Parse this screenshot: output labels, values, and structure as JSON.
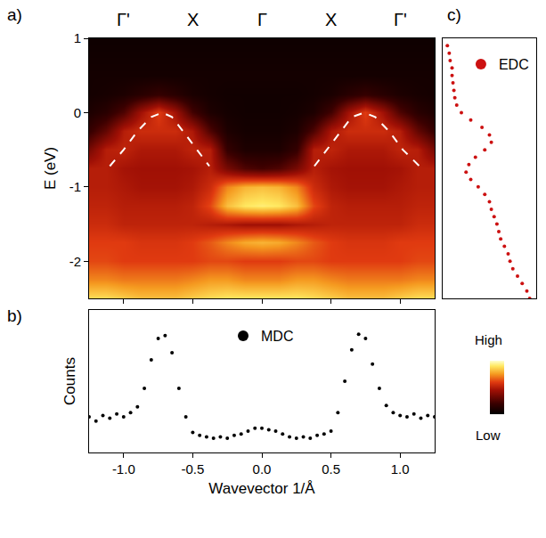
{
  "chart_data": [
    {
      "type": "heatmap",
      "label": "a)",
      "x": [
        -1.25,
        -1.125,
        -1.0,
        -0.875,
        -0.75,
        -0.625,
        -0.5,
        -0.375,
        -0.25,
        -0.125,
        0,
        0.125,
        0.25,
        0.375,
        0.5,
        0.625,
        0.75,
        0.875,
        1.0,
        1.125,
        1.25
      ],
      "y": [
        1.0,
        0.75,
        0.5,
        0.25,
        0,
        -0.25,
        -0.5,
        -0.75,
        -1.0,
        -1.25,
        -1.5,
        -1.75,
        -2.0,
        -2.25,
        -2.5
      ],
      "z": [
        [
          0.05,
          0.05,
          0.05,
          0.05,
          0.05,
          0.05,
          0.05,
          0.05,
          0.05,
          0.05,
          0.05,
          0.05,
          0.05,
          0.05,
          0.05,
          0.05,
          0.05,
          0.05,
          0.05,
          0.05,
          0.05
        ],
        [
          0.06,
          0.06,
          0.06,
          0.06,
          0.06,
          0.06,
          0.06,
          0.06,
          0.06,
          0.06,
          0.06,
          0.06,
          0.06,
          0.06,
          0.06,
          0.06,
          0.06,
          0.06,
          0.06,
          0.06,
          0.06
        ],
        [
          0.07,
          0.07,
          0.07,
          0.07,
          0.07,
          0.07,
          0.07,
          0.07,
          0.07,
          0.07,
          0.07,
          0.07,
          0.07,
          0.07,
          0.07,
          0.07,
          0.07,
          0.07,
          0.07,
          0.07,
          0.07
        ],
        [
          0.07,
          0.08,
          0.1,
          0.14,
          0.18,
          0.14,
          0.09,
          0.07,
          0.06,
          0.06,
          0.06,
          0.06,
          0.06,
          0.07,
          0.09,
          0.14,
          0.18,
          0.14,
          0.1,
          0.08,
          0.07
        ],
        [
          0.1,
          0.14,
          0.25,
          0.45,
          0.6,
          0.45,
          0.22,
          0.1,
          0.07,
          0.06,
          0.06,
          0.06,
          0.07,
          0.1,
          0.22,
          0.45,
          0.6,
          0.45,
          0.25,
          0.14,
          0.1
        ],
        [
          0.18,
          0.3,
          0.5,
          0.55,
          0.55,
          0.55,
          0.48,
          0.25,
          0.1,
          0.07,
          0.07,
          0.07,
          0.1,
          0.25,
          0.48,
          0.55,
          0.55,
          0.55,
          0.5,
          0.3,
          0.18
        ],
        [
          0.35,
          0.5,
          0.52,
          0.48,
          0.48,
          0.48,
          0.52,
          0.5,
          0.18,
          0.1,
          0.1,
          0.1,
          0.18,
          0.5,
          0.52,
          0.48,
          0.48,
          0.48,
          0.52,
          0.5,
          0.35
        ],
        [
          0.5,
          0.5,
          0.46,
          0.45,
          0.45,
          0.45,
          0.46,
          0.5,
          0.35,
          0.25,
          0.22,
          0.25,
          0.35,
          0.5,
          0.46,
          0.45,
          0.45,
          0.45,
          0.46,
          0.5,
          0.5
        ],
        [
          0.5,
          0.5,
          0.48,
          0.46,
          0.46,
          0.46,
          0.48,
          0.55,
          0.72,
          0.8,
          0.82,
          0.8,
          0.72,
          0.55,
          0.48,
          0.46,
          0.46,
          0.46,
          0.48,
          0.5,
          0.5
        ],
        [
          0.52,
          0.52,
          0.5,
          0.5,
          0.5,
          0.5,
          0.52,
          0.62,
          0.82,
          0.9,
          0.92,
          0.9,
          0.82,
          0.62,
          0.52,
          0.5,
          0.5,
          0.5,
          0.5,
          0.52,
          0.52
        ],
        [
          0.55,
          0.55,
          0.52,
          0.52,
          0.52,
          0.52,
          0.52,
          0.5,
          0.48,
          0.45,
          0.45,
          0.45,
          0.48,
          0.5,
          0.52,
          0.52,
          0.52,
          0.52,
          0.52,
          0.55,
          0.55
        ],
        [
          0.6,
          0.6,
          0.6,
          0.58,
          0.58,
          0.58,
          0.6,
          0.65,
          0.72,
          0.78,
          0.8,
          0.78,
          0.72,
          0.65,
          0.6,
          0.58,
          0.58,
          0.58,
          0.6,
          0.6,
          0.6
        ],
        [
          0.62,
          0.62,
          0.6,
          0.6,
          0.6,
          0.6,
          0.6,
          0.62,
          0.62,
          0.6,
          0.6,
          0.6,
          0.62,
          0.62,
          0.6,
          0.6,
          0.6,
          0.6,
          0.6,
          0.62,
          0.62
        ],
        [
          0.72,
          0.72,
          0.7,
          0.7,
          0.7,
          0.7,
          0.72,
          0.75,
          0.75,
          0.72,
          0.72,
          0.72,
          0.75,
          0.75,
          0.72,
          0.7,
          0.7,
          0.7,
          0.7,
          0.72,
          0.72
        ],
        [
          0.88,
          0.88,
          0.85,
          0.82,
          0.82,
          0.82,
          0.85,
          0.88,
          0.9,
          0.9,
          0.9,
          0.9,
          0.9,
          0.88,
          0.85,
          0.82,
          0.82,
          0.82,
          0.85,
          0.88,
          0.88
        ]
      ],
      "zlim": [
        0,
        1
      ],
      "colorbar_ticks": [
        {
          "value": 1,
          "label": "High"
        },
        {
          "value": 0,
          "label": "Low"
        }
      ],
      "ylabel": "E (eV)",
      "xlim": [
        -1.25,
        1.25
      ],
      "ylim": [
        -2.5,
        1.0
      ],
      "xticks": [
        -1.0,
        -0.5,
        0,
        0.5,
        1.0
      ],
      "yticks": [
        -2,
        -1,
        0,
        1
      ],
      "tick_labels": "y",
      "annotations": [
        {
          "text": "Γ'",
          "x": -1.0
        },
        {
          "text": "X",
          "x": -0.5
        },
        {
          "text": "Γ",
          "x": 0
        },
        {
          "text": "X",
          "x": 0.5
        },
        {
          "text": "Γ'",
          "x": 1.0
        }
      ],
      "series": [
        {
          "type": "line",
          "line_style": "dashed",
          "color": "#ffffff",
          "x": [
            -1.1,
            -1.0,
            -0.9,
            -0.8,
            -0.72,
            -0.65,
            -0.55,
            -0.45,
            -0.38,
            null,
            0.38,
            0.45,
            0.55,
            0.65,
            0.74,
            0.82,
            0.92,
            1.02,
            1.14
          ],
          "values": [
            -0.72,
            -0.5,
            -0.25,
            -0.06,
            0.0,
            -0.06,
            -0.3,
            -0.55,
            -0.72,
            null,
            -0.72,
            -0.55,
            -0.3,
            -0.06,
            0.0,
            -0.06,
            -0.25,
            -0.5,
            -0.72
          ]
        }
      ]
    },
    {
      "type": "scatter",
      "label": "b)",
      "xlabel": "Wavevector 1/Å",
      "ylabel": "Counts",
      "xlim": [
        -1.25,
        1.25
      ],
      "ylim": [
        0,
        1
      ],
      "xticks": [
        {
          "value": -1.0,
          "label": "-1.0"
        },
        {
          "value": -0.5,
          "label": "-0.5"
        },
        {
          "value": 0,
          "label": "0.0"
        },
        {
          "value": 0.5,
          "label": "0.5"
        },
        {
          "value": 1.0,
          "label": "1.0"
        }
      ],
      "tick_labels": "x",
      "legend": "top",
      "series": [
        {
          "name": "MDC",
          "marker": "circle",
          "color": "#000000",
          "x": [
            -1.25,
            -1.2,
            -1.15,
            -1.1,
            -1.05,
            -1.0,
            -0.95,
            -0.9,
            -0.85,
            -0.8,
            -0.75,
            -0.7,
            -0.65,
            -0.6,
            -0.55,
            -0.5,
            -0.45,
            -0.4,
            -0.35,
            -0.3,
            -0.25,
            -0.2,
            -0.15,
            -0.1,
            -0.05,
            0,
            0.05,
            0.1,
            0.15,
            0.2,
            0.25,
            0.3,
            0.35,
            0.4,
            0.45,
            0.5,
            0.55,
            0.6,
            0.65,
            0.7,
            0.75,
            0.8,
            0.85,
            0.9,
            0.95,
            1.0,
            1.05,
            1.1,
            1.15,
            1.2,
            1.25
          ],
          "values": [
            0.25,
            0.22,
            0.26,
            0.24,
            0.27,
            0.25,
            0.28,
            0.32,
            0.45,
            0.65,
            0.8,
            0.82,
            0.7,
            0.45,
            0.25,
            0.14,
            0.12,
            0.11,
            0.1,
            0.11,
            0.1,
            0.12,
            0.13,
            0.15,
            0.17,
            0.17,
            0.16,
            0.15,
            0.13,
            0.11,
            0.1,
            0.11,
            0.1,
            0.12,
            0.13,
            0.15,
            0.28,
            0.5,
            0.72,
            0.83,
            0.8,
            0.62,
            0.45,
            0.33,
            0.28,
            0.26,
            0.25,
            0.27,
            0.24,
            0.26,
            0.25
          ]
        }
      ]
    },
    {
      "type": "scatter",
      "label": "c)",
      "xlim": [
        0,
        1
      ],
      "ylim": [
        -2.5,
        1.0
      ],
      "tick_labels": false,
      "legend": "top right",
      "series": [
        {
          "name": "EDC",
          "marker": "circle",
          "color": "#cc1111",
          "x": [
            0.05,
            0.07,
            0.08,
            0.1,
            0.1,
            0.11,
            0.12,
            0.13,
            0.15,
            0.2,
            0.3,
            0.42,
            0.5,
            0.52,
            0.45,
            0.35,
            0.28,
            0.25,
            0.3,
            0.38,
            0.45,
            0.5,
            0.52,
            0.55,
            0.58,
            0.6,
            0.62,
            0.66,
            0.7,
            0.72,
            0.75,
            0.8,
            0.85,
            0.9,
            0.93
          ],
          "values": [
            0.9,
            0.8,
            0.7,
            0.6,
            0.5,
            0.4,
            0.3,
            0.2,
            0.1,
            0.0,
            -0.1,
            -0.2,
            -0.3,
            -0.4,
            -0.5,
            -0.6,
            -0.7,
            -0.8,
            -0.9,
            -1.0,
            -1.1,
            -1.2,
            -1.3,
            -1.4,
            -1.5,
            -1.6,
            -1.7,
            -1.8,
            -1.9,
            -2.0,
            -2.1,
            -2.2,
            -2.3,
            -2.4,
            -2.5
          ]
        }
      ]
    }
  ]
}
